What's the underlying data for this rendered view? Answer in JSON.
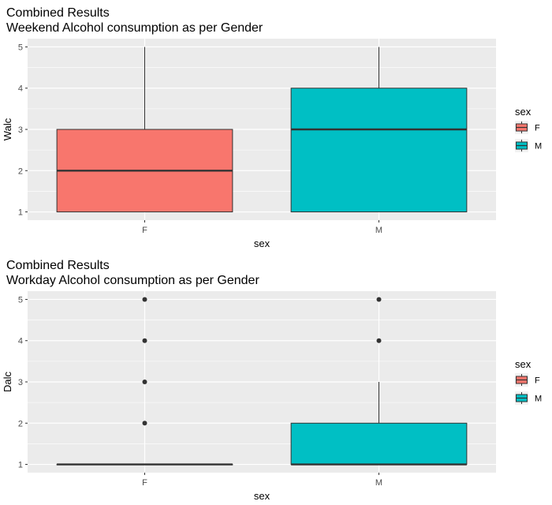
{
  "chart_data": [
    {
      "type": "box",
      "title": "Combined Results",
      "subtitle": "Weekend Alcohol consumption as per Gender",
      "xlabel": "sex",
      "ylabel": "Walc",
      "categories": [
        "F",
        "M"
      ],
      "ylim": [
        0.8,
        5.2
      ],
      "yticks": [
        1,
        2,
        3,
        4,
        5
      ],
      "grid": true,
      "boxes": [
        {
          "category": "F",
          "whisker_low": 1,
          "q1": 1,
          "median": 2,
          "q3": 3,
          "whisker_high": 5,
          "outliers": []
        },
        {
          "category": "M",
          "whisker_low": 1,
          "q1": 1,
          "median": 3,
          "q3": 4,
          "whisker_high": 5,
          "outliers": []
        }
      ],
      "legend": {
        "title": "sex",
        "placement": "right",
        "items": [
          "F",
          "M"
        ]
      }
    },
    {
      "type": "box",
      "title": "Combined Results",
      "subtitle": "Workday Alcohol consumption as per Gender",
      "xlabel": "sex",
      "ylabel": "Dalc",
      "categories": [
        "F",
        "M"
      ],
      "ylim": [
        0.8,
        5.2
      ],
      "yticks": [
        1,
        2,
        3,
        4,
        5
      ],
      "grid": true,
      "boxes": [
        {
          "category": "F",
          "whisker_low": 1,
          "q1": 1,
          "median": 1,
          "q3": 1,
          "whisker_high": 1,
          "outliers": [
            2,
            3,
            4,
            5
          ]
        },
        {
          "category": "M",
          "whisker_low": 1,
          "q1": 1,
          "median": 1,
          "q3": 2,
          "whisker_high": 3,
          "outliers": [
            4,
            5
          ]
        }
      ],
      "legend": {
        "title": "sex",
        "placement": "right",
        "items": [
          "F",
          "M"
        ]
      }
    }
  ],
  "colors": {
    "F": "#F8766D",
    "M": "#00BFC4",
    "panel": "#EBEBEB",
    "grid": "#FFFFFF",
    "line": "#333333"
  }
}
